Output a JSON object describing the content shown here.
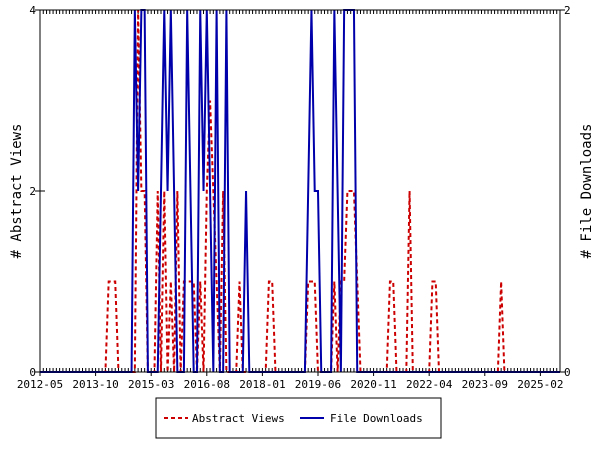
{
  "chart_data": {
    "type": "line",
    "title": "",
    "x_ticks": [
      "2012-05",
      "2013-10",
      "2015-03",
      "2016-08",
      "2018-01",
      "2019-06",
      "2020-11",
      "2022-04",
      "2023-09",
      "2025-02"
    ],
    "x_range": [
      "2012-05",
      "2025-08"
    ],
    "y_left": {
      "label": "# Abstract Views",
      "range": [
        0,
        4
      ],
      "ticks": [
        "0",
        "2",
        "4"
      ]
    },
    "y_right": {
      "label": "# File Downloads",
      "range": [
        0,
        2
      ],
      "ticks": [
        "0",
        "2"
      ]
    },
    "legend": {
      "placement": "bottom-center"
    },
    "series": [
      {
        "name": "Abstract Views",
        "axis": "left",
        "color": "#cc0000",
        "style": "dashed",
        "points": [
          {
            "x": "2014-02",
            "y": 1
          },
          {
            "x": "2014-03",
            "y": 1
          },
          {
            "x": "2014-04",
            "y": 1
          },
          {
            "x": "2014-11",
            "y": 4
          },
          {
            "x": "2014-12",
            "y": 2
          },
          {
            "x": "2015-01",
            "y": 2
          },
          {
            "x": "2015-05",
            "y": 2
          },
          {
            "x": "2015-07",
            "y": 2
          },
          {
            "x": "2015-09",
            "y": 1
          },
          {
            "x": "2015-11",
            "y": 2
          },
          {
            "x": "2016-01",
            "y": 1
          },
          {
            "x": "2016-02",
            "y": 1
          },
          {
            "x": "2016-03",
            "y": 1
          },
          {
            "x": "2016-04",
            "y": 1
          },
          {
            "x": "2016-06",
            "y": 1
          },
          {
            "x": "2016-08",
            "y": 2
          },
          {
            "x": "2016-09",
            "y": 3
          },
          {
            "x": "2016-10",
            "y": 2
          },
          {
            "x": "2016-11",
            "y": 1
          },
          {
            "x": "2017-01",
            "y": 2
          },
          {
            "x": "2017-06",
            "y": 1
          },
          {
            "x": "2018-03",
            "y": 1
          },
          {
            "x": "2018-04",
            "y": 1
          },
          {
            "x": "2019-03",
            "y": 1
          },
          {
            "x": "2019-04",
            "y": 1
          },
          {
            "x": "2019-05",
            "y": 1
          },
          {
            "x": "2019-11",
            "y": 1
          },
          {
            "x": "2020-01",
            "y": 1
          },
          {
            "x": "2020-02",
            "y": 1
          },
          {
            "x": "2020-03",
            "y": 2
          },
          {
            "x": "2020-04",
            "y": 2
          },
          {
            "x": "2020-05",
            "y": 2
          },
          {
            "x": "2020-06",
            "y": 1
          },
          {
            "x": "2021-04",
            "y": 1
          },
          {
            "x": "2021-05",
            "y": 1
          },
          {
            "x": "2021-10",
            "y": 2
          },
          {
            "x": "2022-05",
            "y": 1
          },
          {
            "x": "2022-06",
            "y": 1
          },
          {
            "x": "2024-02",
            "y": 1
          }
        ]
      },
      {
        "name": "File Downloads",
        "axis": "right",
        "color": "#0000aa",
        "style": "solid",
        "points": [
          {
            "x": "2014-10",
            "y": 2
          },
          {
            "x": "2014-11",
            "y": 1
          },
          {
            "x": "2014-12",
            "y": 2
          },
          {
            "x": "2015-01",
            "y": 2
          },
          {
            "x": "2015-06",
            "y": 1
          },
          {
            "x": "2015-07",
            "y": 2
          },
          {
            "x": "2015-08",
            "y": 1
          },
          {
            "x": "2015-09",
            "y": 2
          },
          {
            "x": "2015-10",
            "y": 1
          },
          {
            "x": "2016-02",
            "y": 2
          },
          {
            "x": "2016-03",
            "y": 1
          },
          {
            "x": "2016-06",
            "y": 2
          },
          {
            "x": "2016-07",
            "y": 1
          },
          {
            "x": "2016-08",
            "y": 2
          },
          {
            "x": "2016-09",
            "y": 1
          },
          {
            "x": "2016-11",
            "y": 2
          },
          {
            "x": "2017-02",
            "y": 2
          },
          {
            "x": "2017-08",
            "y": 1
          },
          {
            "x": "2019-03",
            "y": 1
          },
          {
            "x": "2019-04",
            "y": 2
          },
          {
            "x": "2019-05",
            "y": 1
          },
          {
            "x": "2019-06",
            "y": 1
          },
          {
            "x": "2019-11",
            "y": 2
          },
          {
            "x": "2019-12",
            "y": 1
          },
          {
            "x": "2020-02",
            "y": 2
          },
          {
            "x": "2020-03",
            "y": 2
          },
          {
            "x": "2020-04",
            "y": 2
          },
          {
            "x": "2020-05",
            "y": 2
          }
        ]
      }
    ]
  }
}
